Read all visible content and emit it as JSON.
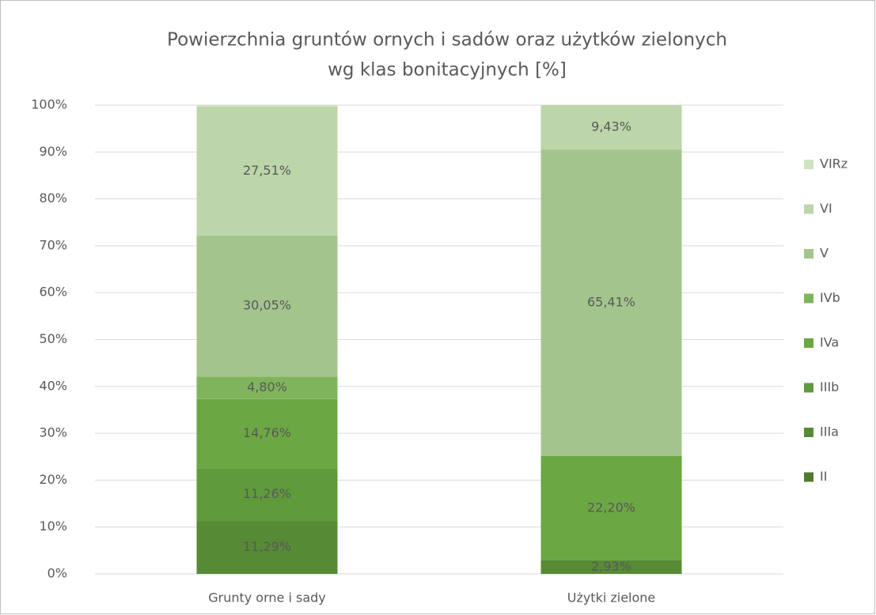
{
  "chart_data": {
    "type": "stacked_bar",
    "title": [
      "Powierzchnia gruntów ornych i sadów oraz użytków zielonych",
      "wg klas bonitacyjnych [%]"
    ],
    "categories": [
      "Grunty orne i sady",
      "Użytki zielone"
    ],
    "series": [
      {
        "name": "II",
        "color": "#4f7b2f",
        "values": [
          0,
          0
        ],
        "value_labels": [
          null,
          null
        ]
      },
      {
        "name": "IIIa",
        "color": "#578a35",
        "values": [
          11.29,
          2.93
        ],
        "value_labels": [
          "11,29%",
          "2,93%"
        ]
      },
      {
        "name": "IIIb",
        "color": "#5f9a3b",
        "values": [
          11.26,
          0
        ],
        "value_labels": [
          "11,26%",
          null
        ]
      },
      {
        "name": "IVa",
        "color": "#6ba743",
        "values": [
          14.76,
          22.2
        ],
        "value_labels": [
          "14,76%",
          "22,20%"
        ]
      },
      {
        "name": "IVb",
        "color": "#80b45c",
        "values": [
          4.8,
          0
        ],
        "value_labels": [
          "4,80%",
          null
        ]
      },
      {
        "name": "V",
        "color": "#a3c58c",
        "values": [
          30.05,
          65.41
        ],
        "value_labels": [
          "30,05%",
          "65,41%"
        ]
      },
      {
        "name": "VI",
        "color": "#bcd5a9",
        "values": [
          27.51,
          9.43
        ],
        "value_labels": [
          "27,51%",
          "9,43%"
        ]
      },
      {
        "name": "VIRz",
        "color": "#cfe2c2",
        "values": [
          0.33,
          0
        ],
        "value_labels": [
          null,
          null
        ]
      }
    ],
    "ylim": [
      0,
      100
    ],
    "yticks": [
      {
        "value": 0,
        "label": "0%"
      },
      {
        "value": 10,
        "label": "10%"
      },
      {
        "value": 20,
        "label": "20%"
      },
      {
        "value": 30,
        "label": "30%"
      },
      {
        "value": 40,
        "label": "40%"
      },
      {
        "value": 50,
        "label": "50%"
      },
      {
        "value": 60,
        "label": "60%"
      },
      {
        "value": 70,
        "label": "70%"
      },
      {
        "value": 80,
        "label": "80%"
      },
      {
        "value": 90,
        "label": "90%"
      },
      {
        "value": 100,
        "label": "100%"
      }
    ],
    "grid": true,
    "legend": "right"
  }
}
